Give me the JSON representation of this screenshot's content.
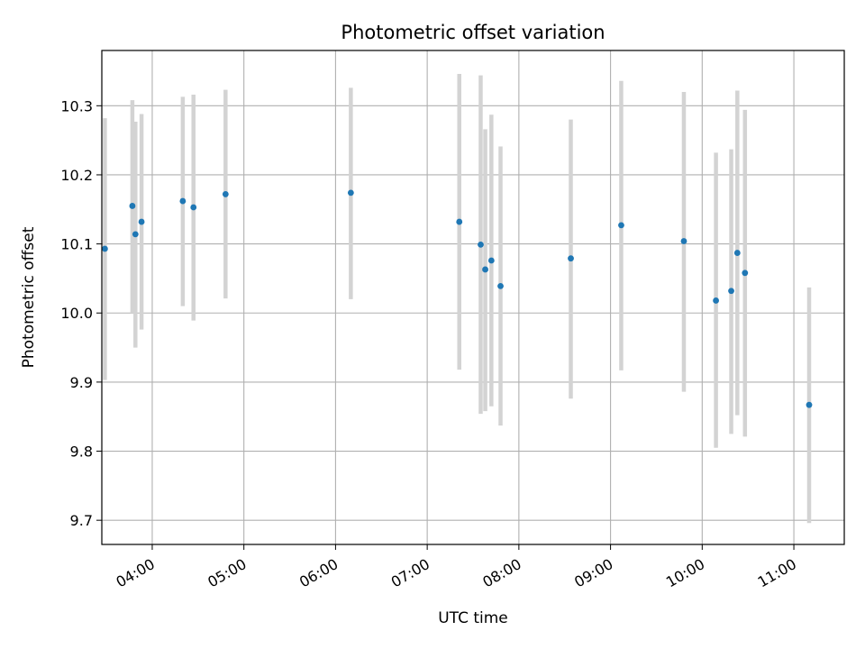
{
  "chart_data": {
    "type": "scatter",
    "title": "Photometric offset variation",
    "xlabel": "UTC time",
    "ylabel": "Photometric offset",
    "xlim": [
      "03:27",
      "11:33"
    ],
    "ylim": [
      9.665,
      10.38
    ],
    "grid": true,
    "x_ticks": [
      "04:00",
      "05:00",
      "06:00",
      "07:00",
      "08:00",
      "09:00",
      "10:00",
      "11:00"
    ],
    "y_ticks": [
      "9.7",
      "9.8",
      "9.9",
      "10.0",
      "10.1",
      "10.2",
      "10.3"
    ],
    "point_color": "#1f77b4",
    "errorbar_color": "#d3d3d3",
    "points": [
      {
        "x": "03:29",
        "y": 10.093,
        "ylo": 9.903,
        "yhi": 10.282
      },
      {
        "x": "03:47",
        "y": 10.155,
        "ylo": 10.0,
        "yhi": 10.308
      },
      {
        "x": "03:49",
        "y": 10.114,
        "ylo": 9.95,
        "yhi": 10.277
      },
      {
        "x": "03:53",
        "y": 10.132,
        "ylo": 9.976,
        "yhi": 10.288
      },
      {
        "x": "04:20",
        "y": 10.162,
        "ylo": 10.01,
        "yhi": 10.313
      },
      {
        "x": "04:27",
        "y": 10.153,
        "ylo": 9.989,
        "yhi": 10.316
      },
      {
        "x": "04:48",
        "y": 10.172,
        "ylo": 10.021,
        "yhi": 10.323
      },
      {
        "x": "06:10",
        "y": 10.174,
        "ylo": 10.02,
        "yhi": 10.326
      },
      {
        "x": "07:21",
        "y": 10.132,
        "ylo": 9.918,
        "yhi": 10.346
      },
      {
        "x": "07:35",
        "y": 10.099,
        "ylo": 9.854,
        "yhi": 10.344
      },
      {
        "x": "07:38",
        "y": 10.063,
        "ylo": 9.858,
        "yhi": 10.266
      },
      {
        "x": "07:42",
        "y": 10.076,
        "ylo": 9.865,
        "yhi": 10.287
      },
      {
        "x": "07:48",
        "y": 10.039,
        "ylo": 9.837,
        "yhi": 10.241
      },
      {
        "x": "08:34",
        "y": 10.079,
        "ylo": 9.876,
        "yhi": 10.28
      },
      {
        "x": "09:07",
        "y": 10.127,
        "ylo": 9.917,
        "yhi": 10.336
      },
      {
        "x": "09:48",
        "y": 10.104,
        "ylo": 9.886,
        "yhi": 10.32
      },
      {
        "x": "10:09",
        "y": 10.018,
        "ylo": 9.805,
        "yhi": 10.232
      },
      {
        "x": "10:19",
        "y": 10.032,
        "ylo": 9.825,
        "yhi": 10.237
      },
      {
        "x": "10:23",
        "y": 10.087,
        "ylo": 9.852,
        "yhi": 10.322
      },
      {
        "x": "10:28",
        "y": 10.058,
        "ylo": 9.821,
        "yhi": 10.294
      },
      {
        "x": "11:10",
        "y": 9.867,
        "ylo": 9.696,
        "yhi": 10.037
      }
    ]
  }
}
